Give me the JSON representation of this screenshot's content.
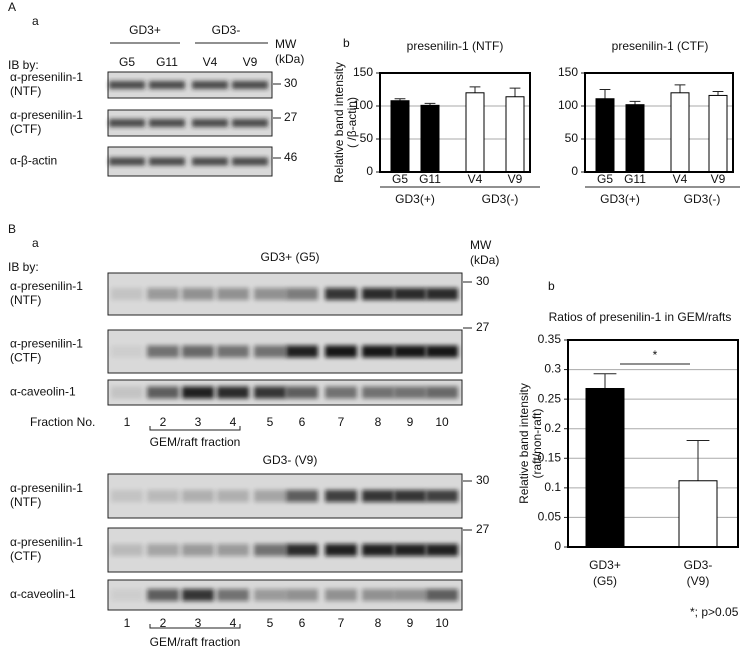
{
  "labels": [
    "A",
    "a",
    "b",
    "B",
    "a",
    "b"
  ],
  "blot_A": {
    "ib_by": "IB by:",
    "groups": [
      "GD3+",
      "GD3-"
    ],
    "mw": [
      "MW",
      "(kDa)"
    ],
    "lanes": [
      "G5",
      "G11",
      "V4",
      "V9"
    ],
    "rows": [
      [
        "α-presenilin-1",
        "(NTF)"
      ],
      [
        "α-presenilin-1",
        "(CTF)"
      ],
      [
        "α-β-actin"
      ]
    ],
    "markers": [
      "30",
      "27",
      "46"
    ]
  },
  "blot_B": {
    "ib_by": "IB by:",
    "mw": [
      "MW",
      "(kDa)"
    ],
    "panels": [
      {
        "title": "GD3+ (G5)",
        "rows": [
          [
            "α-presenilin-1",
            "(NTF)"
          ],
          [
            "α-presenilin-1",
            "(CTF)"
          ],
          [
            "α-caveolin-1"
          ]
        ],
        "markers": [
          "30",
          "27"
        ],
        "fraction_label": "Fraction No.",
        "fractions": [
          "1",
          "2",
          "3",
          "4",
          "5",
          "6",
          "7",
          "8",
          "9",
          "10"
        ],
        "bracket": "GEM/raft fraction"
      },
      {
        "title": "GD3- (V9)",
        "rows": [
          [
            "α-presenilin-1",
            "(NTF)"
          ],
          [
            "α-presenilin-1",
            "(CTF)"
          ],
          [
            "α-caveolin-1"
          ]
        ],
        "markers": [
          "30",
          "27"
        ],
        "fractions": [
          "1",
          "2",
          "3",
          "4",
          "5",
          "6",
          "7",
          "8",
          "9",
          "10"
        ],
        "bracket": "GEM/raft fraction"
      }
    ]
  },
  "chart_data": [
    {
      "type": "bar",
      "title": "presenilin-1  (NTF)",
      "y_label": [
        "Relative band intensity",
        "( /β-actin)"
      ],
      "categories": [
        "G5",
        "G11",
        "V4",
        "V9"
      ],
      "group_labels": [
        "GD3(+)",
        "GD3(-)"
      ],
      "values": [
        108,
        101,
        120,
        114
      ],
      "errors": [
        3,
        3,
        9,
        13
      ],
      "colors": [
        "#000000",
        "#000000",
        "#ffffff",
        "#ffffff"
      ],
      "ylim": [
        0,
        150
      ],
      "yticks": [
        0,
        50,
        100,
        150
      ],
      "grid": true
    },
    {
      "type": "bar",
      "title": "presenilin-1  (CTF)",
      "categories": [
        "G5",
        "G11",
        "V4",
        "V9"
      ],
      "group_labels": [
        "GD3(+)",
        "GD3(-)"
      ],
      "values": [
        111,
        102,
        120,
        116
      ],
      "errors": [
        14,
        5,
        12,
        6
      ],
      "colors": [
        "#000000",
        "#000000",
        "#ffffff",
        "#ffffff"
      ],
      "ylim": [
        0,
        150
      ],
      "yticks": [
        0,
        50,
        100,
        150
      ],
      "grid": true
    },
    {
      "type": "bar",
      "title": "Ratios of presenilin-1 in GEM/rafts",
      "y_label": [
        "Relative band intensity",
        "(raft/non-raft)"
      ],
      "categories": [
        "GD3+",
        "GD3-"
      ],
      "category_sublabels": [
        "(G5)",
        "(V9)"
      ],
      "values": [
        0.268,
        0.112
      ],
      "errors": [
        0.025,
        0.068
      ],
      "colors": [
        "#000000",
        "#ffffff"
      ],
      "ylim": [
        0,
        0.35
      ],
      "yticks": [
        0,
        0.05,
        0.1,
        0.15,
        0.2,
        0.25,
        0.3,
        0.35
      ],
      "grid": true,
      "annotation": "*",
      "note": "*; p>0.05"
    }
  ]
}
